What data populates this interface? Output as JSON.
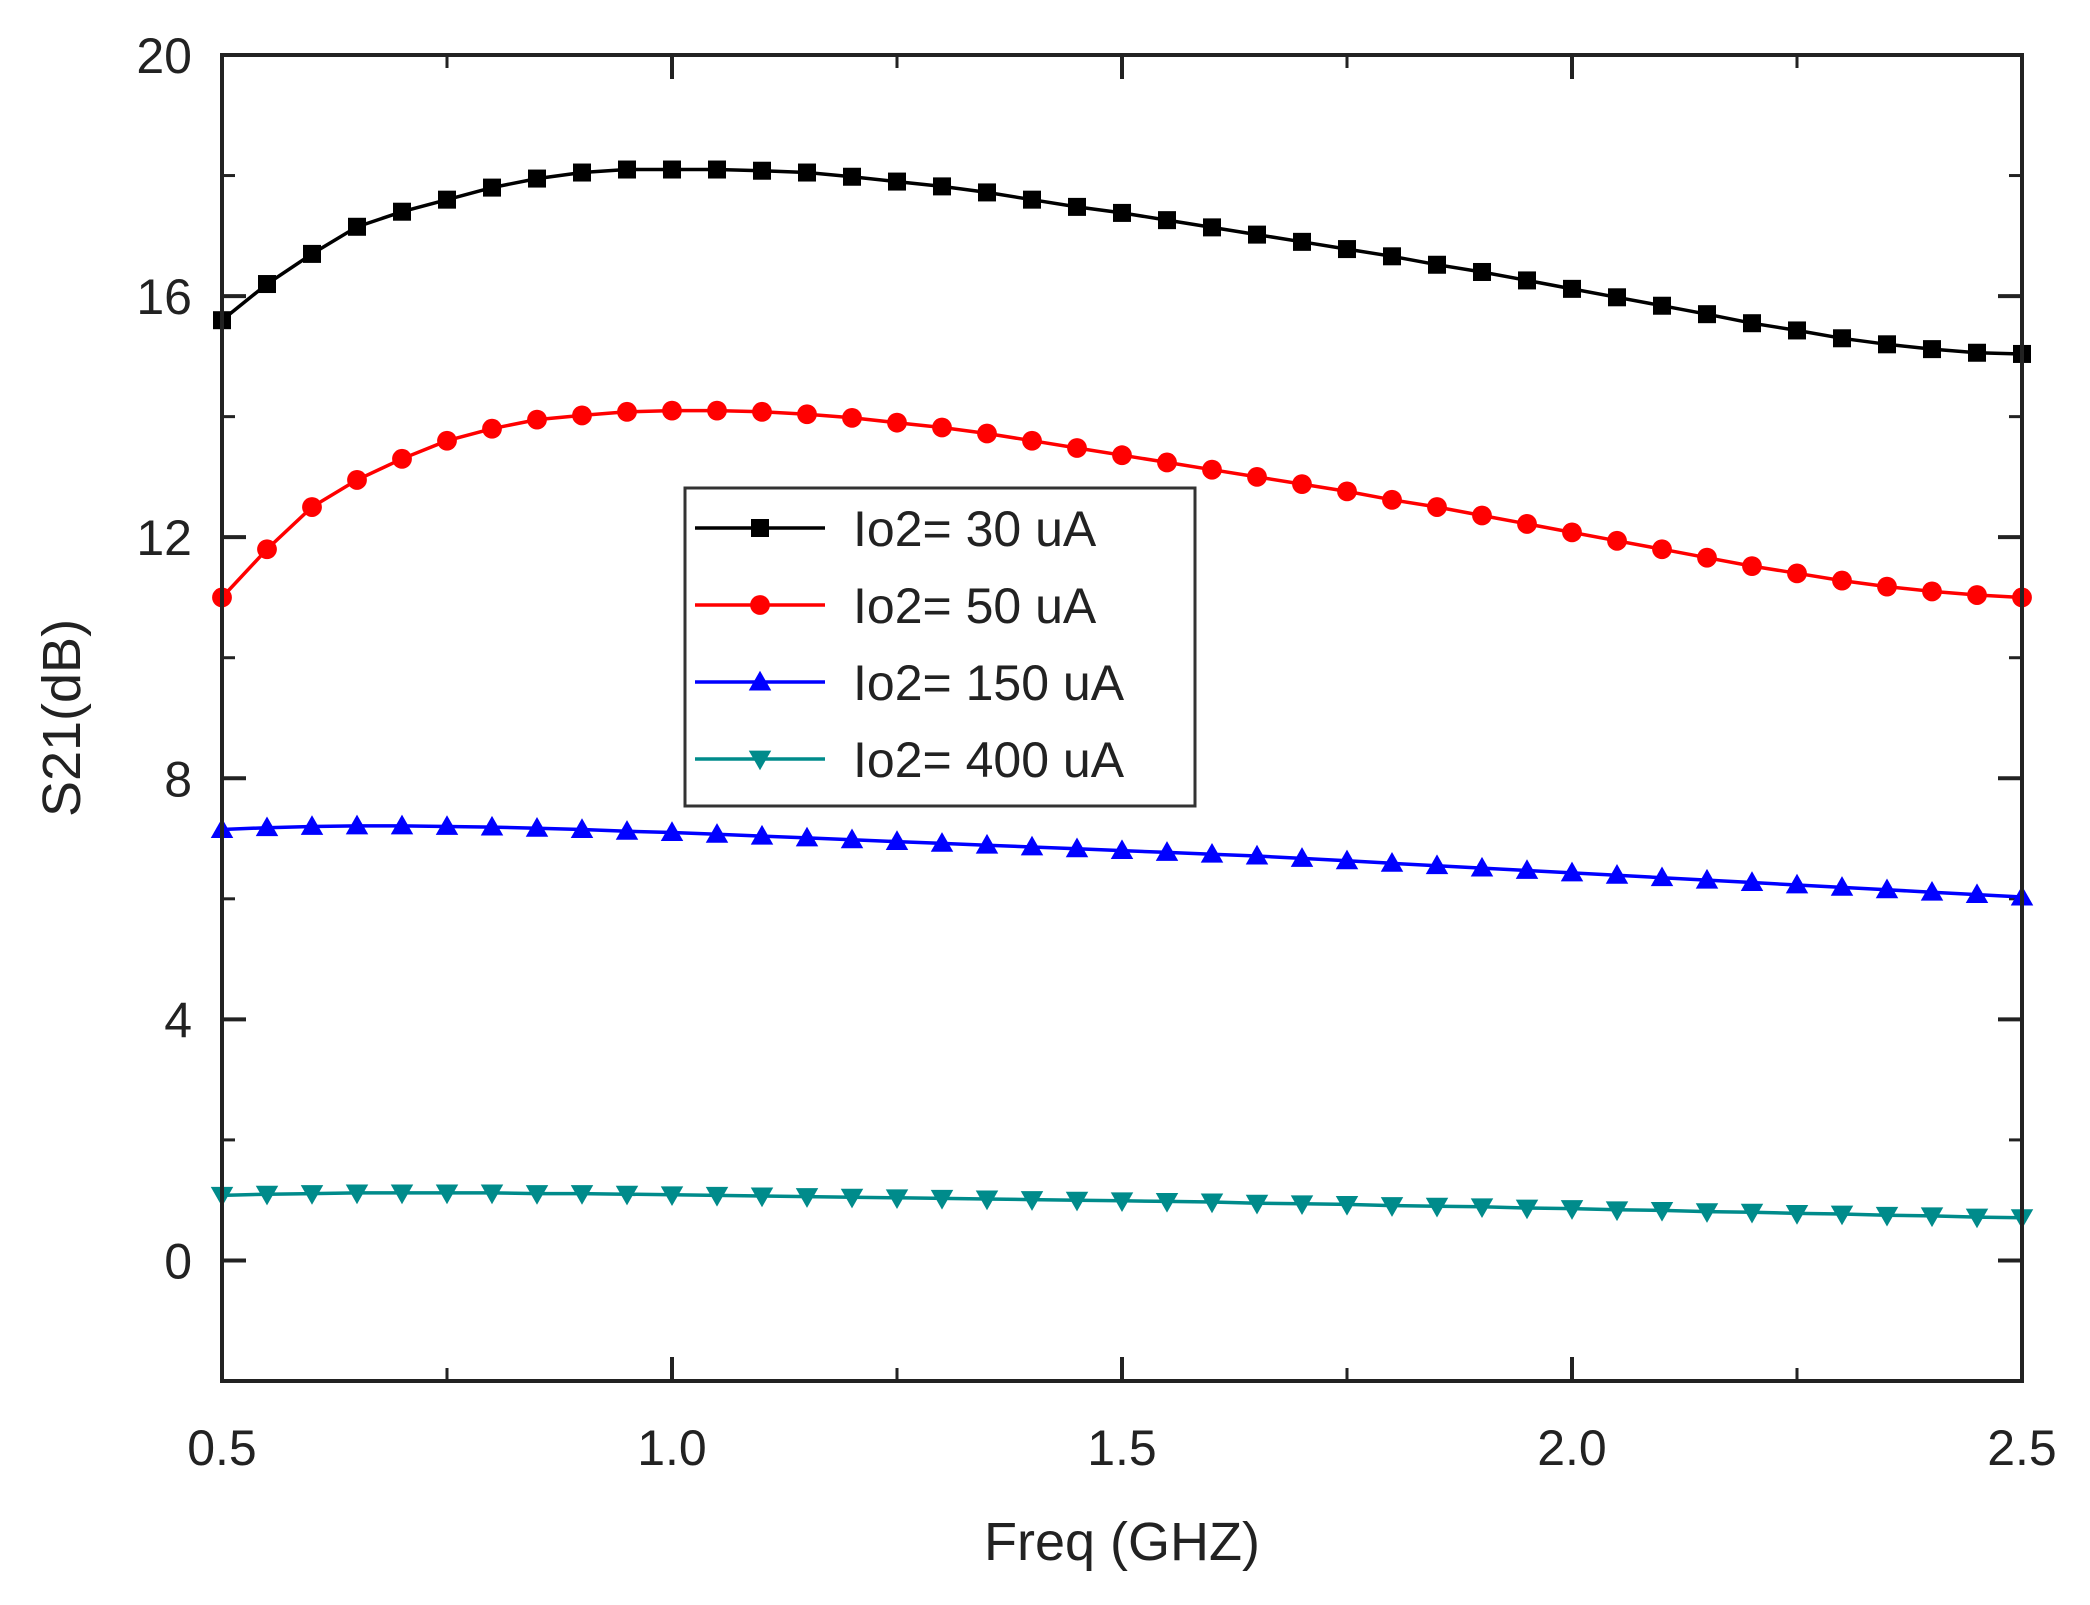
{
  "chart_data": {
    "type": "line",
    "title": "",
    "xlabel": "Freq (GHZ)",
    "ylabel": "S21(dB)",
    "xlim": [
      0.5,
      2.5
    ],
    "ylim": [
      -2,
      20
    ],
    "x_ticks": [
      0.5,
      1.0,
      1.5,
      2.0,
      2.5
    ],
    "x_tick_labels": [
      "0.5",
      "1.0",
      "1.5",
      "2.0",
      "2.5"
    ],
    "y_ticks": [
      0,
      4,
      8,
      12,
      16,
      20
    ],
    "y_tick_labels": [
      "0",
      "4",
      "8",
      "12",
      "16",
      "20"
    ],
    "grid": false,
    "legend_position": "center-left",
    "x": [
      0.5,
      0.55,
      0.6,
      0.65,
      0.7,
      0.75,
      0.8,
      0.85,
      0.9,
      0.95,
      1.0,
      1.05,
      1.1,
      1.15,
      1.2,
      1.25,
      1.3,
      1.35,
      1.4,
      1.45,
      1.5,
      1.55,
      1.6,
      1.65,
      1.7,
      1.75,
      1.8,
      1.85,
      1.9,
      1.95,
      2.0,
      2.05,
      2.1,
      2.15,
      2.2,
      2.25,
      2.3,
      2.35,
      2.4,
      2.45,
      2.5
    ],
    "series": [
      {
        "name": "Io2= 30 uA",
        "color": "#000000",
        "marker": "square",
        "values": [
          15.6,
          16.2,
          16.7,
          17.15,
          17.4,
          17.6,
          17.8,
          17.95,
          18.05,
          18.1,
          18.1,
          18.1,
          18.08,
          18.05,
          17.98,
          17.9,
          17.82,
          17.72,
          17.6,
          17.48,
          17.38,
          17.26,
          17.14,
          17.02,
          16.9,
          16.78,
          16.66,
          16.52,
          16.4,
          16.26,
          16.12,
          15.98,
          15.84,
          15.7,
          15.55,
          15.43,
          15.3,
          15.2,
          15.12,
          15.06,
          15.04
        ]
      },
      {
        "name": "Io2= 50 uA",
        "color": "#ff0000",
        "marker": "circle",
        "values": [
          11.0,
          11.8,
          12.5,
          12.95,
          13.3,
          13.6,
          13.8,
          13.95,
          14.02,
          14.08,
          14.1,
          14.1,
          14.08,
          14.04,
          13.98,
          13.9,
          13.82,
          13.72,
          13.6,
          13.48,
          13.36,
          13.24,
          13.12,
          13.0,
          12.88,
          12.76,
          12.62,
          12.5,
          12.36,
          12.22,
          12.08,
          11.94,
          11.8,
          11.66,
          11.52,
          11.4,
          11.28,
          11.18,
          11.1,
          11.04,
          11.0
        ]
      },
      {
        "name": "Io2= 150 uA",
        "color": "#0000ff",
        "marker": "triangle-up",
        "values": [
          7.15,
          7.18,
          7.2,
          7.21,
          7.21,
          7.2,
          7.19,
          7.17,
          7.15,
          7.12,
          7.1,
          7.07,
          7.04,
          7.01,
          6.98,
          6.95,
          6.92,
          6.89,
          6.86,
          6.83,
          6.8,
          6.77,
          6.74,
          6.71,
          6.67,
          6.63,
          6.59,
          6.55,
          6.51,
          6.47,
          6.43,
          6.39,
          6.35,
          6.31,
          6.27,
          6.23,
          6.19,
          6.15,
          6.11,
          6.07,
          6.03
        ]
      },
      {
        "name": "Io2= 400 uA",
        "color": "#008b8b",
        "marker": "triangle-down",
        "values": [
          1.08,
          1.1,
          1.11,
          1.12,
          1.12,
          1.12,
          1.12,
          1.11,
          1.11,
          1.1,
          1.09,
          1.08,
          1.07,
          1.06,
          1.05,
          1.04,
          1.03,
          1.02,
          1.01,
          1.0,
          0.99,
          0.98,
          0.97,
          0.95,
          0.94,
          0.93,
          0.91,
          0.9,
          0.89,
          0.87,
          0.86,
          0.84,
          0.83,
          0.81,
          0.8,
          0.78,
          0.77,
          0.75,
          0.74,
          0.72,
          0.71
        ]
      }
    ]
  }
}
